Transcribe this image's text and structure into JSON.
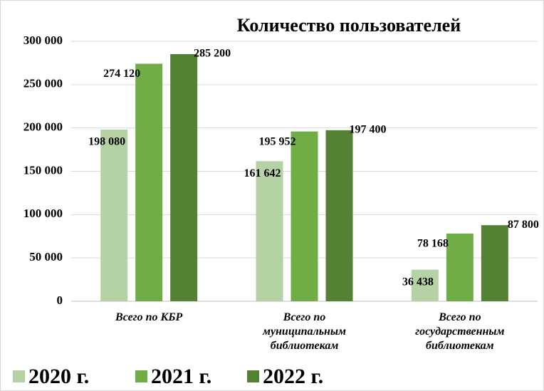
{
  "chart_data": {
    "type": "bar",
    "title": "Количество пользователей",
    "categories": [
      "Всего по КБР",
      "Всего по муниципальным библиотекам",
      "Всего по государственным библиотекам"
    ],
    "series": [
      {
        "name": "2020 г.",
        "color": "#b4d2a4",
        "values": [
          198080,
          161642,
          36438
        ],
        "value_labels": [
          "198 080",
          "161 642",
          "36 438"
        ]
      },
      {
        "name": "2021 г.",
        "color": "#70ad47",
        "values": [
          274120,
          195952,
          78168
        ],
        "value_labels": [
          "274 120",
          "195 952",
          "78 168"
        ]
      },
      {
        "name": "2022 г.",
        "color": "#548235",
        "values": [
          285200,
          197400,
          87800
        ],
        "value_labels": [
          "285 200",
          "197 400",
          "87 800"
        ]
      }
    ],
    "ylim": [
      0,
      300000
    ],
    "yticks": [
      0,
      {
        "value": 50000,
        "label": "50 000"
      },
      {
        "value": 100000,
        "label": "100 000"
      },
      {
        "value": 150000,
        "label": "150 000"
      },
      {
        "value": 200000,
        "label": "200 000"
      },
      {
        "value": 250000,
        "label": "250 000"
      },
      {
        "value": 300000,
        "label": "300 000"
      }
    ],
    "grid": true,
    "legend": "bottom"
  }
}
